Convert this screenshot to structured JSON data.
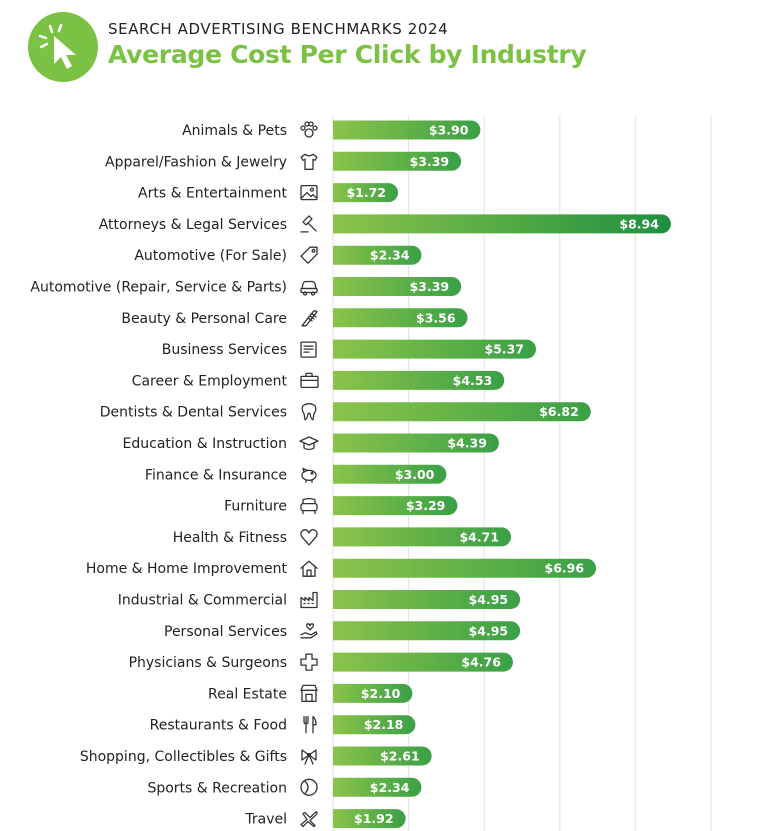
{
  "header": {
    "kicker": "SEARCH ADVERTISING BENCHMARKS 2024",
    "title": "Average Cost Per Click by Industry",
    "logo_icon": "cursor-click-icon"
  },
  "colors": {
    "brand_green": "#7bc143",
    "bar_light": "#8bc34a",
    "bar_dark": "#1e9040",
    "text": "#222222"
  },
  "chart_data": {
    "type": "bar",
    "orientation": "horizontal",
    "title": "Average Cost Per Click by Industry",
    "xlim": [
      0,
      11
    ],
    "grid": true,
    "value_prefix": "$",
    "categories": [
      "Animals & Pets",
      "Apparel/Fashion & Jewelry",
      "Arts & Entertainment",
      "Attorneys & Legal Services",
      "Automotive (For Sale)",
      "Automotive (Repair, Service & Parts)",
      "Beauty & Personal Care",
      "Business Services",
      "Career & Employment",
      "Dentists & Dental Services",
      "Education & Instruction",
      "Finance & Insurance",
      "Furniture",
      "Health & Fitness",
      "Home & Home Improvement",
      "Industrial & Commercial",
      "Personal Services",
      "Physicians & Surgeons",
      "Real Estate",
      "Restaurants & Food",
      "Shopping, Collectibles & Gifts",
      "Sports & Recreation",
      "Travel"
    ],
    "values": [
      3.9,
      3.39,
      1.72,
      8.94,
      2.34,
      3.39,
      3.56,
      5.37,
      4.53,
      6.82,
      4.39,
      3.0,
      3.29,
      4.71,
      6.96,
      4.95,
      4.95,
      4.76,
      2.1,
      2.18,
      2.61,
      2.34,
      1.92
    ],
    "value_labels": [
      "$3.90",
      "$3.39",
      "$1.72",
      "$8.94",
      "$2.34",
      "$3.39",
      "$3.56",
      "$5.37",
      "$4.53",
      "$6.82",
      "$4.39",
      "$3.00",
      "$3.29",
      "$4.71",
      "$6.96",
      "$4.95",
      "$4.95",
      "$4.76",
      "$2.10",
      "$2.18",
      "$2.61",
      "$2.34",
      "$1.92"
    ],
    "icons": [
      "paw-icon",
      "tshirt-icon",
      "picture-icon",
      "gavel-icon",
      "price-tag-icon",
      "car-icon",
      "comb-icon",
      "document-icon",
      "briefcase-icon",
      "tooth-icon",
      "graduation-cap-icon",
      "piggy-bank-icon",
      "armchair-icon",
      "heart-icon",
      "house-icon",
      "factory-icon",
      "hand-heart-icon",
      "medical-cross-icon",
      "storefront-icon",
      "fork-knife-icon",
      "gift-bow-icon",
      "ball-icon",
      "airplane-icon"
    ]
  }
}
